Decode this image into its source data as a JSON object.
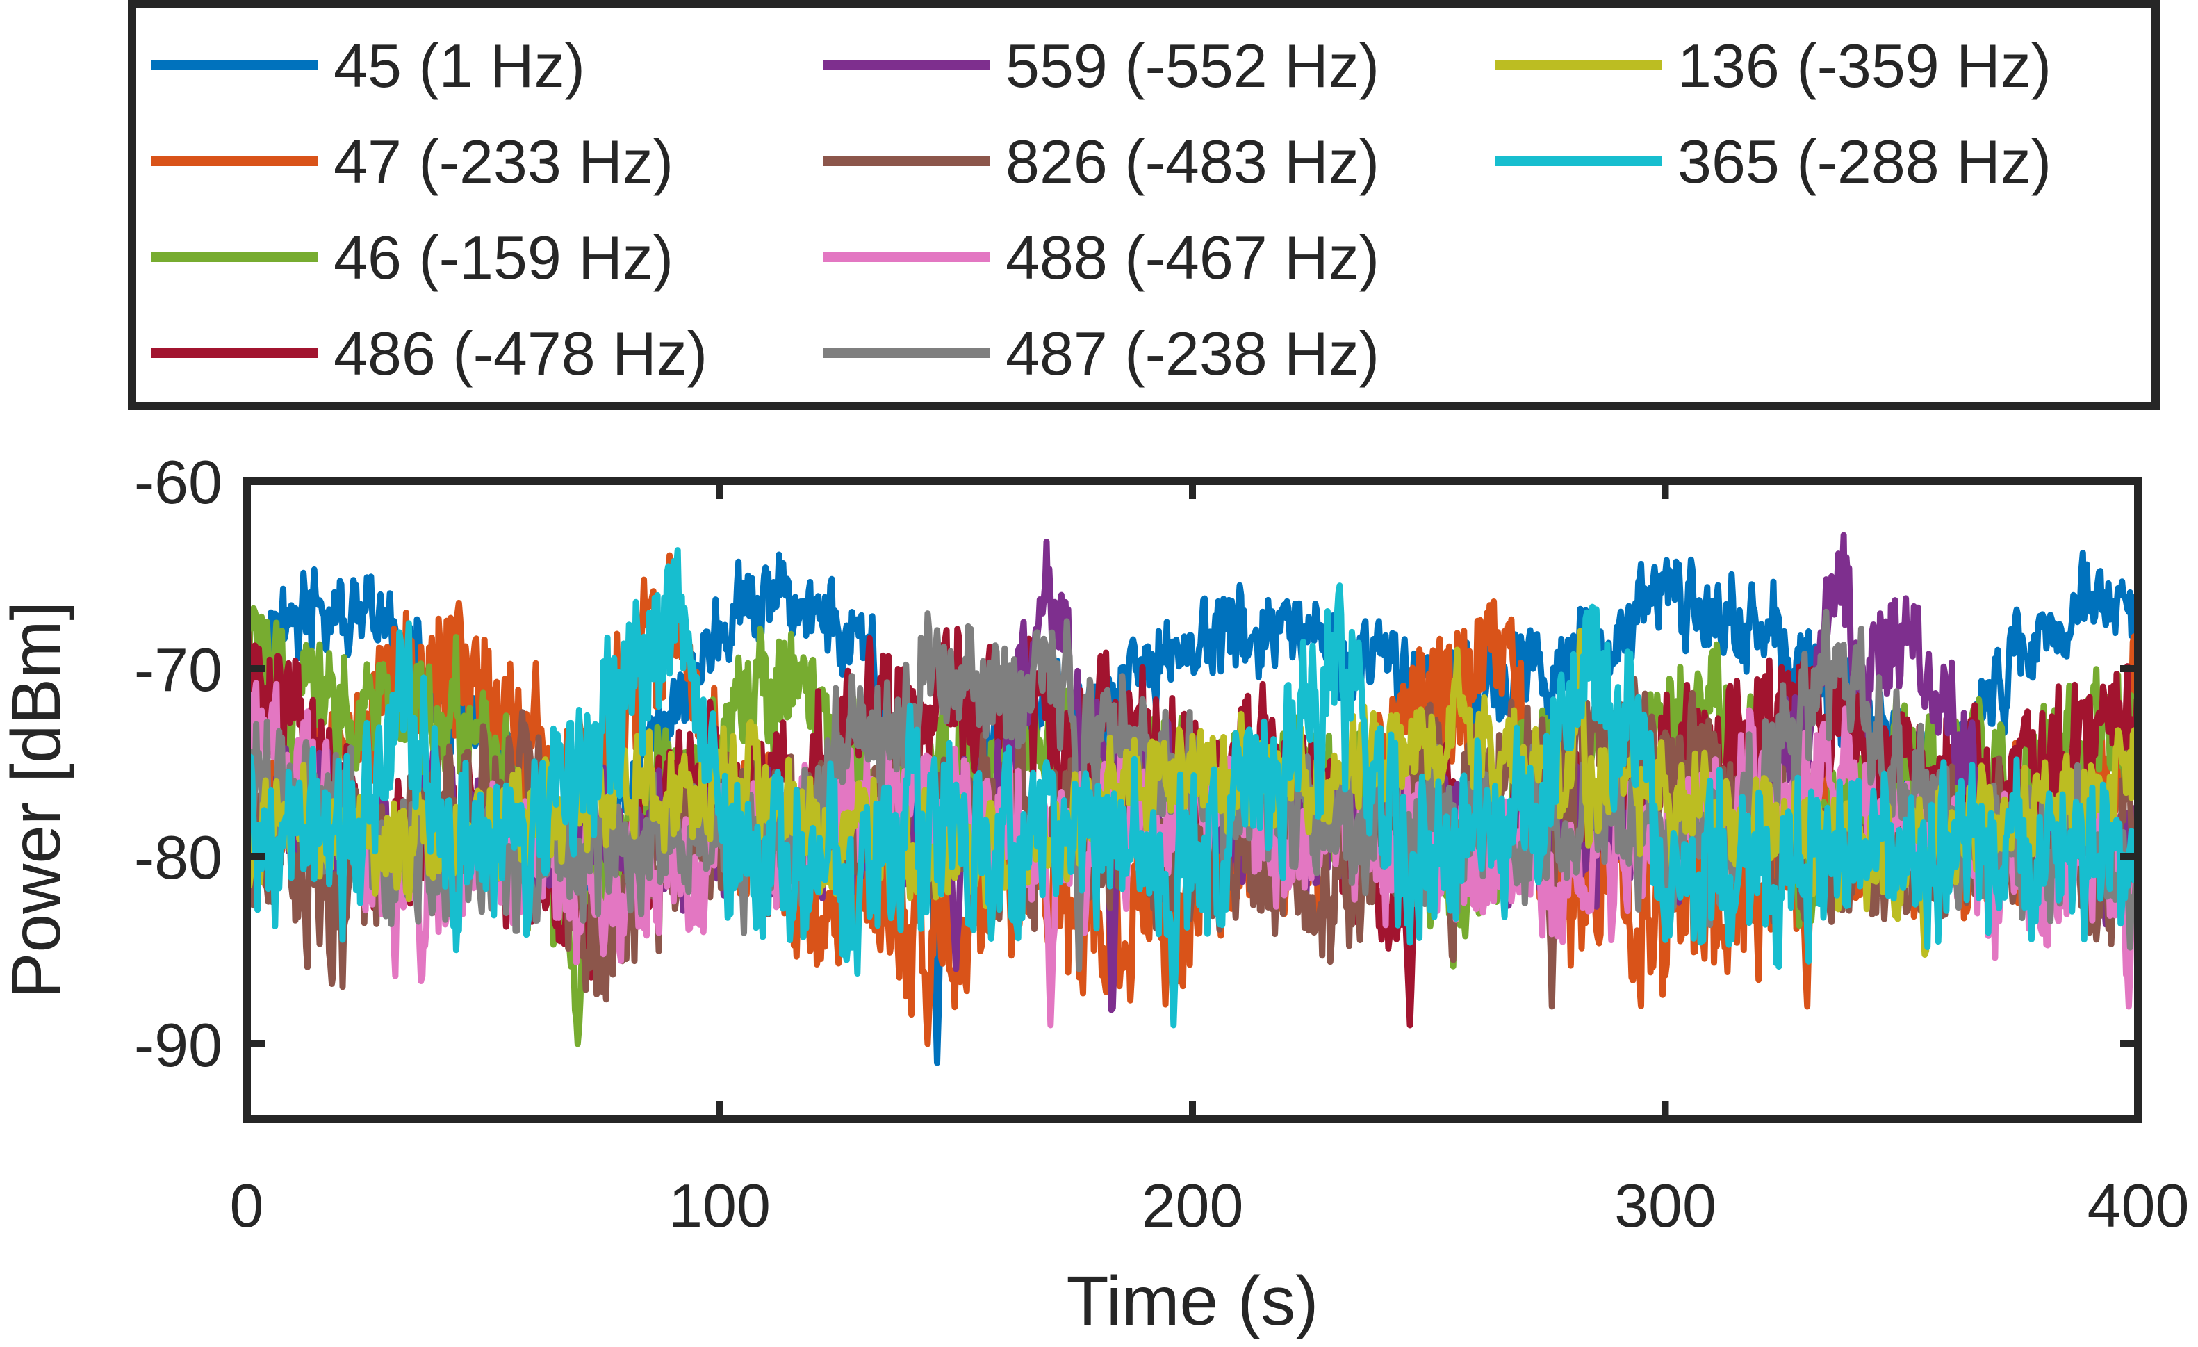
{
  "chart_data": {
    "type": "line",
    "xlabel": "Time (s)",
    "ylabel": "Power [dBm]",
    "xlim": [
      0,
      400
    ],
    "ylim": [
      -94,
      -60
    ],
    "xticks": [
      0,
      100,
      200,
      300,
      400
    ],
    "yticks": [
      -60,
      -70,
      -80,
      -90
    ],
    "grid": false,
    "legend": "top",
    "series": [
      {
        "name": "45 (1 Hz)",
        "color": "#0072BD",
        "mean": -69.5,
        "std": 2.2,
        "anchors": [
          [
            0,
            -70
          ],
          [
            10,
            -67
          ],
          [
            30,
            -68
          ],
          [
            45,
            -73
          ],
          [
            60,
            -77
          ],
          [
            70,
            -82
          ],
          [
            85,
            -74
          ],
          [
            100,
            -68
          ],
          [
            115,
            -66
          ],
          [
            130,
            -69
          ],
          [
            145,
            -80
          ],
          [
            160,
            -72
          ],
          [
            180,
            -73
          ],
          [
            195,
            -69
          ],
          [
            210,
            -68
          ],
          [
            240,
            -70
          ],
          [
            265,
            -71
          ],
          [
            285,
            -69
          ],
          [
            300,
            -66
          ],
          [
            320,
            -68
          ],
          [
            340,
            -72
          ],
          [
            360,
            -76
          ],
          [
            375,
            -69
          ],
          [
            390,
            -66
          ],
          [
            400,
            -68
          ]
        ],
        "spikes": [
          [
            146,
            -91
          ]
        ]
      },
      {
        "name": "47 (-233 Hz)",
        "color": "#D95319",
        "mean": -77.5,
        "std": 4.0,
        "anchors": [
          [
            0,
            -80
          ],
          [
            15,
            -76
          ],
          [
            30,
            -71
          ],
          [
            50,
            -70
          ],
          [
            65,
            -77
          ],
          [
            80,
            -71
          ],
          [
            90,
            -68
          ],
          [
            105,
            -80
          ],
          [
            120,
            -81
          ],
          [
            145,
            -84
          ],
          [
            165,
            -82
          ],
          [
            190,
            -84
          ],
          [
            215,
            -80
          ],
          [
            235,
            -78
          ],
          [
            250,
            -72
          ],
          [
            265,
            -70
          ],
          [
            280,
            -82
          ],
          [
            300,
            -83
          ],
          [
            320,
            -82
          ],
          [
            335,
            -78
          ],
          [
            350,
            -80
          ],
          [
            375,
            -79
          ],
          [
            395,
            -76
          ],
          [
            400,
            -71
          ]
        ],
        "spikes": [
          [
            85,
            -66
          ],
          [
            144,
            -90
          ],
          [
            266,
            -68
          ],
          [
            330,
            -88
          ]
        ]
      },
      {
        "name": "46 (-159 Hz)",
        "color": "#77AC30",
        "mean": -74.5,
        "std": 3.2,
        "anchors": [
          [
            0,
            -69
          ],
          [
            10,
            -71
          ],
          [
            25,
            -73
          ],
          [
            45,
            -72
          ],
          [
            60,
            -79
          ],
          [
            70,
            -84
          ],
          [
            85,
            -78
          ],
          [
            100,
            -73
          ],
          [
            115,
            -71
          ],
          [
            130,
            -76
          ],
          [
            150,
            -75
          ],
          [
            170,
            -74
          ],
          [
            190,
            -75
          ],
          [
            210,
            -76
          ],
          [
            235,
            -77
          ],
          [
            255,
            -82
          ],
          [
            275,
            -74
          ],
          [
            290,
            -74
          ],
          [
            310,
            -72
          ],
          [
            330,
            -80
          ],
          [
            350,
            -75
          ],
          [
            370,
            -77
          ],
          [
            385,
            -74
          ],
          [
            400,
            -73
          ]
        ],
        "spikes": [
          [
            70,
            -90
          ],
          [
            246,
            -86
          ]
        ]
      },
      {
        "name": "486 (-478 Hz)",
        "color": "#A2142F",
        "mean": -74.5,
        "std": 3.4,
        "anchors": [
          [
            0,
            -70
          ],
          [
            10,
            -73
          ],
          [
            25,
            -80
          ],
          [
            45,
            -78
          ],
          [
            60,
            -82
          ],
          [
            75,
            -84
          ],
          [
            90,
            -76
          ],
          [
            110,
            -77
          ],
          [
            130,
            -73
          ],
          [
            150,
            -72
          ],
          [
            170,
            -73
          ],
          [
            185,
            -72
          ],
          [
            200,
            -76
          ],
          [
            220,
            -74
          ],
          [
            240,
            -83
          ],
          [
            255,
            -78
          ],
          [
            270,
            -79
          ],
          [
            290,
            -76
          ],
          [
            310,
            -74
          ],
          [
            330,
            -72
          ],
          [
            350,
            -75
          ],
          [
            370,
            -76
          ],
          [
            385,
            -74
          ],
          [
            400,
            -72
          ]
        ],
        "spikes": [
          [
            75,
            -87
          ],
          [
            246,
            -89
          ]
        ]
      },
      {
        "name": "559 (-552 Hz)",
        "color": "#7E2F8E",
        "mean": -78.5,
        "std": 3.0,
        "anchors": [
          [
            0,
            -78
          ],
          [
            100,
            -79
          ],
          [
            140,
            -79
          ],
          [
            150,
            -80
          ],
          [
            160,
            -76
          ],
          [
            166,
            -69
          ],
          [
            168,
            -63
          ],
          [
            171,
            -67
          ],
          [
            175,
            -72
          ],
          [
            185,
            -76
          ],
          [
            210,
            -79
          ],
          [
            260,
            -79
          ],
          [
            320,
            -78
          ],
          [
            332,
            -70
          ],
          [
            337,
            -64
          ],
          [
            342,
            -71
          ],
          [
            350,
            -67
          ],
          [
            358,
            -72
          ],
          [
            370,
            -79
          ],
          [
            400,
            -80
          ]
        ],
        "spikes": [
          [
            183,
            -90
          ],
          [
            150,
            -86
          ]
        ]
      },
      {
        "name": "826 (-483 Hz)",
        "color": "#8C564B",
        "mean": -77.5,
        "std": 3.6,
        "anchors": [
          [
            0,
            -79
          ],
          [
            20,
            -82
          ],
          [
            40,
            -78
          ],
          [
            60,
            -76
          ],
          [
            75,
            -85
          ],
          [
            90,
            -79
          ],
          [
            110,
            -79
          ],
          [
            130,
            -78
          ],
          [
            150,
            -77
          ],
          [
            170,
            -79
          ],
          [
            190,
            -80
          ],
          [
            210,
            -80
          ],
          [
            230,
            -82
          ],
          [
            250,
            -76
          ],
          [
            270,
            -75
          ],
          [
            290,
            -74
          ],
          [
            310,
            -76
          ],
          [
            330,
            -80
          ],
          [
            350,
            -81
          ],
          [
            370,
            -79
          ],
          [
            390,
            -81
          ],
          [
            400,
            -80
          ]
        ],
        "spikes": [
          [
            276,
            -88
          ],
          [
            255,
            -87
          ]
        ]
      },
      {
        "name": "488 (-467 Hz)",
        "color": "#E377C2",
        "mean": -79.0,
        "std": 3.4,
        "anchors": [
          [
            0,
            -74
          ],
          [
            15,
            -76
          ],
          [
            30,
            -82
          ],
          [
            45,
            -81
          ],
          [
            60,
            -80
          ],
          [
            80,
            -82
          ],
          [
            100,
            -80
          ],
          [
            120,
            -78
          ],
          [
            140,
            -77
          ],
          [
            155,
            -78
          ],
          [
            170,
            -80
          ],
          [
            185,
            -79
          ],
          [
            200,
            -78
          ],
          [
            210,
            -76
          ],
          [
            220,
            -80
          ],
          [
            240,
            -79
          ],
          [
            260,
            -80
          ],
          [
            280,
            -81
          ],
          [
            300,
            -79
          ],
          [
            320,
            -77
          ],
          [
            340,
            -76
          ],
          [
            360,
            -80
          ],
          [
            380,
            -81
          ],
          [
            400,
            -80
          ]
        ],
        "spikes": [
          [
            37,
            -87
          ],
          [
            170,
            -89
          ],
          [
            398,
            -88
          ]
        ]
      },
      {
        "name": "487 (-238 Hz)",
        "color": "#7F7F7F",
        "mean": -76.0,
        "std": 3.4,
        "anchors": [
          [
            0,
            -76
          ],
          [
            30,
            -80
          ],
          [
            60,
            -80
          ],
          [
            90,
            -79
          ],
          [
            115,
            -80
          ],
          [
            125,
            -76
          ],
          [
            140,
            -72
          ],
          [
            160,
            -71
          ],
          [
            168,
            -70
          ],
          [
            180,
            -73
          ],
          [
            200,
            -77
          ],
          [
            230,
            -78
          ],
          [
            260,
            -78
          ],
          [
            290,
            -79
          ],
          [
            310,
            -80
          ],
          [
            325,
            -74
          ],
          [
            335,
            -71
          ],
          [
            345,
            -73
          ],
          [
            360,
            -79
          ],
          [
            380,
            -80
          ],
          [
            400,
            -80
          ]
        ],
        "spikes": [
          [
            176,
            -86
          ],
          [
            167,
            -68
          ]
        ]
      },
      {
        "name": "136 (-359 Hz)",
        "color": "#BCBD22",
        "mean": -77.5,
        "std": 2.8,
        "anchors": [
          [
            0,
            -80
          ],
          [
            10,
            -78
          ],
          [
            30,
            -80
          ],
          [
            50,
            -78
          ],
          [
            70,
            -77
          ],
          [
            90,
            -76
          ],
          [
            110,
            -77
          ],
          [
            130,
            -79
          ],
          [
            150,
            -80
          ],
          [
            170,
            -79
          ],
          [
            190,
            -76
          ],
          [
            210,
            -75
          ],
          [
            230,
            -76
          ],
          [
            250,
            -74
          ],
          [
            270,
            -75
          ],
          [
            290,
            -76
          ],
          [
            310,
            -78
          ],
          [
            330,
            -79
          ],
          [
            350,
            -80
          ],
          [
            370,
            -78
          ],
          [
            390,
            -77
          ],
          [
            400,
            -76
          ]
        ],
        "spikes": [
          [
            282,
            -68
          ],
          [
            355,
            -86
          ],
          [
            256,
            -69
          ]
        ]
      },
      {
        "name": "365 (-288 Hz)",
        "color": "#17BECF",
        "mean": -78.5,
        "std": 4.5,
        "anchors": [
          [
            0,
            -76
          ],
          [
            8,
            -79
          ],
          [
            20,
            -79
          ],
          [
            35,
            -72
          ],
          [
            45,
            -80
          ],
          [
            60,
            -79
          ],
          [
            80,
            -73
          ],
          [
            90,
            -67
          ],
          [
            100,
            -78
          ],
          [
            120,
            -81
          ],
          [
            145,
            -79
          ],
          [
            160,
            -80
          ],
          [
            175,
            -78
          ],
          [
            190,
            -80
          ],
          [
            200,
            -81
          ],
          [
            215,
            -77
          ],
          [
            230,
            -71
          ],
          [
            245,
            -80
          ],
          [
            260,
            -79
          ],
          [
            275,
            -77
          ],
          [
            283,
            -68
          ],
          [
            290,
            -72
          ],
          [
            300,
            -80
          ],
          [
            320,
            -81
          ],
          [
            340,
            -80
          ],
          [
            360,
            -79
          ],
          [
            380,
            -80
          ],
          [
            400,
            -79
          ]
        ],
        "spikes": [
          [
            196,
            -89
          ],
          [
            231,
            -65
          ]
        ]
      }
    ]
  }
}
